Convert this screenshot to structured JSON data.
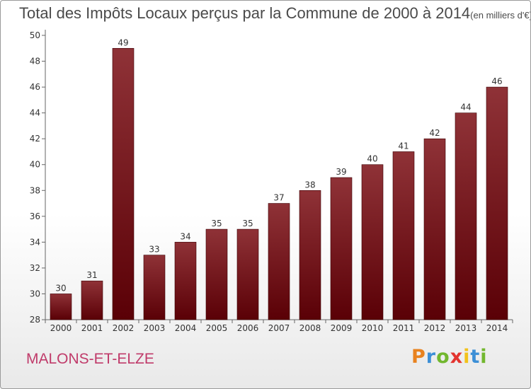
{
  "chart_data": {
    "type": "bar",
    "title": "Total des Impôts Locaux perçus par la Commune de 2000 à 2014",
    "subtitle": "(en milliers d'€)",
    "categories": [
      "2000",
      "2001",
      "2002",
      "2003",
      "2004",
      "2005",
      "2006",
      "2007",
      "2008",
      "2009",
      "2010",
      "2011",
      "2012",
      "2013",
      "2014"
    ],
    "values": [
      30,
      31,
      49,
      33,
      34,
      35,
      35,
      37,
      38,
      39,
      40,
      41,
      42,
      44,
      46
    ],
    "ylim": [
      28,
      50
    ],
    "yticks": [
      28,
      30,
      32,
      34,
      36,
      38,
      40,
      42,
      44,
      46,
      48,
      50
    ],
    "xlabel": "",
    "ylabel": "",
    "grid": false,
    "bar_color_top": "#8f3237",
    "bar_color_bottom": "#5a0006"
  },
  "footer": {
    "commune": "MALONS-ET-ELZE"
  },
  "brand": {
    "letters": [
      "P",
      "r",
      "o",
      "x",
      "i",
      "t",
      "i"
    ],
    "colors": [
      "#e8821f",
      "#3d8fd6",
      "#72b72e",
      "#e3342f",
      "#f2c21a",
      "#3d8fd6",
      "#72b72e"
    ]
  }
}
